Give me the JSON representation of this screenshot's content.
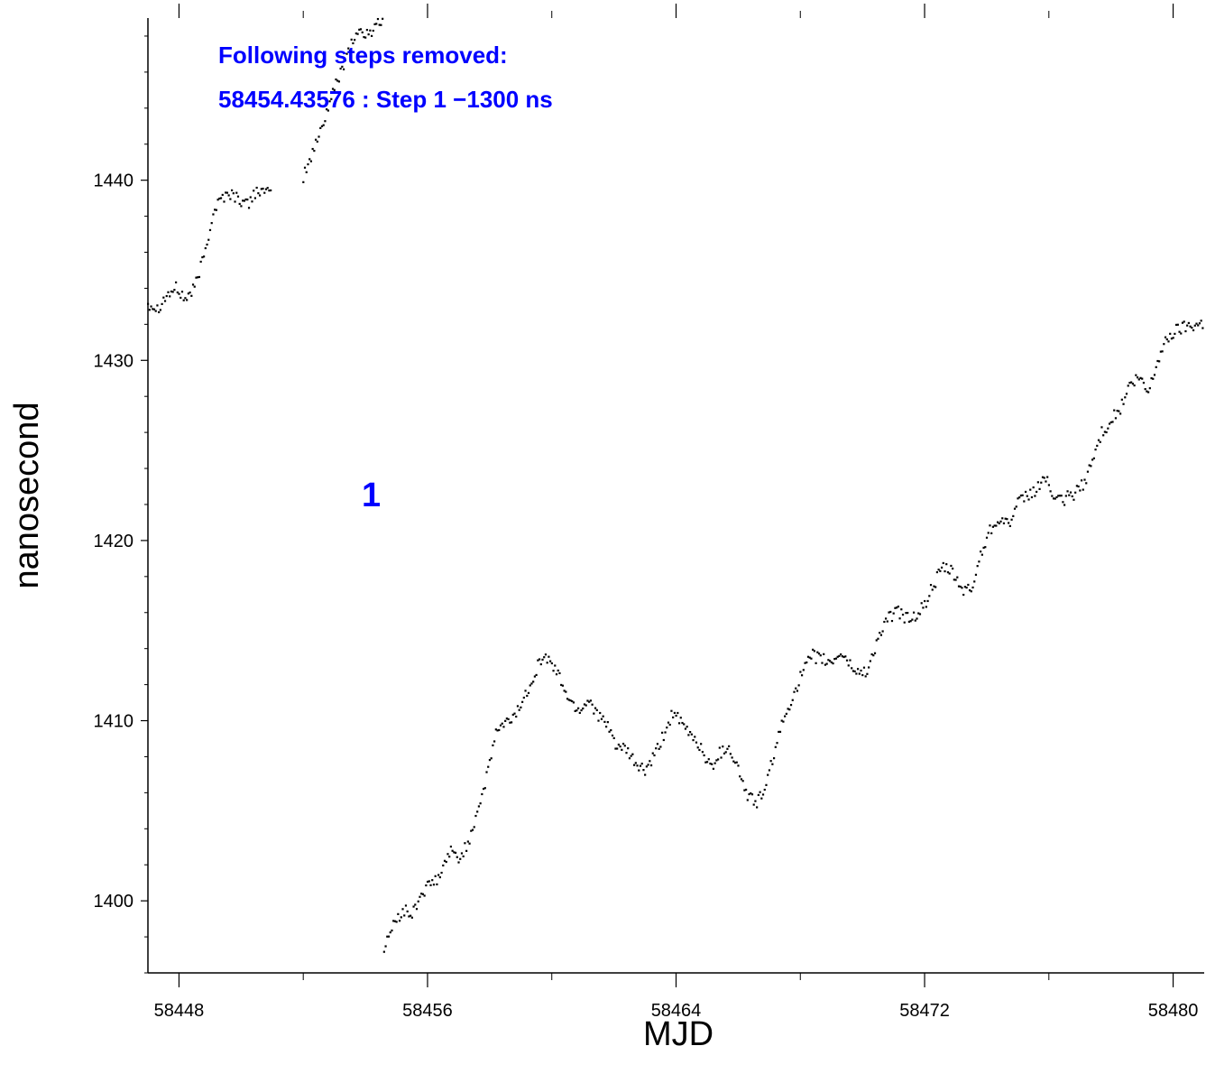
{
  "chart_data": {
    "type": "scatter",
    "title": "",
    "xlabel": "MJD",
    "ylabel": "nanosecond",
    "xlim": [
      58447,
      58481
    ],
    "ylim": [
      1396,
      1449
    ],
    "x_ticks": [
      58448,
      58456,
      58464,
      58472,
      58480
    ],
    "x_minor_ticks": [
      58452,
      58460,
      58468,
      58476
    ],
    "y_ticks": [
      1400,
      1410,
      1420,
      1430,
      1440
    ],
    "grid": false,
    "legend": "none",
    "marker_color": "#000000",
    "annotation_color": "#0000ff",
    "annotations": {
      "line1": "Following steps removed:",
      "line2": "58454.43576 : Step 1 −1300 ns",
      "step_marker": "1"
    },
    "series": [
      {
        "segments": [
          {
            "x": [
              58447.0,
              58447.3,
              58447.6,
              58447.9,
              58448.2,
              58448.5,
              58448.8,
              58449.1,
              58449.3,
              58449.6,
              58449.9,
              58450.2,
              58450.5,
              58450.8,
              58451.0
            ],
            "y": [
              1433.2,
              1432.9,
              1433.6,
              1434.0,
              1433.4,
              1434.0,
              1435.8,
              1438.2,
              1438.9,
              1439.3,
              1439.0,
              1438.6,
              1439.5,
              1439.2,
              1439.4
            ]
          },
          {
            "x": [
              58452.0,
              58452.3,
              58452.6,
              58452.9,
              58453.2,
              58453.5,
              58453.8,
              58454.1,
              58454.4,
              58454.6
            ],
            "y": [
              1440.2,
              1441.5,
              1443.0,
              1444.6,
              1446.0,
              1447.5,
              1448.3,
              1448.0,
              1448.9,
              1448.6
            ]
          },
          {
            "x": [
              58454.6,
              58454.9,
              58455.2,
              58455.5,
              58455.8,
              58456.1,
              58456.4,
              58456.7,
              58457.0,
              58457.3,
              58457.6,
              58457.9,
              58458.2,
              58458.5,
              58458.8,
              58459.1,
              58459.4,
              58459.7,
              58460.0,
              58460.3,
              58460.6,
              58460.9,
              58461.2,
              58461.5,
              58461.8,
              58462.1,
              58462.4,
              58462.7,
              58463.0,
              58463.3,
              58463.6,
              58463.9,
              58464.2,
              58464.5,
              58464.8,
              58465.1,
              58465.4,
              58465.7,
              58466.0,
              58466.3,
              58466.6,
              58466.9,
              58467.2,
              58467.5,
              58467.8,
              58468.1,
              58468.4,
              58468.7,
              58469.0,
              58469.3,
              58469.6,
              58469.9,
              58470.2,
              58470.5,
              58470.8,
              58471.1,
              58471.4,
              58471.7,
              58472.0,
              58472.3,
              58472.6,
              58472.9,
              58473.2,
              58473.5,
              58473.8,
              58474.1,
              58474.4,
              58474.7,
              58475.0,
              58475.3,
              58475.6,
              58475.9,
              58476.2,
              58476.5,
              58476.8,
              58477.1,
              58477.4,
              58477.7,
              58478.0,
              58478.3,
              58478.6,
              58478.9,
              58479.2,
              58479.5,
              58479.8,
              58480.1,
              58480.4,
              58480.7,
              58481.0
            ],
            "y": [
              1397.5,
              1398.6,
              1399.5,
              1399.2,
              1400.4,
              1400.9,
              1401.3,
              1402.8,
              1402.3,
              1403.2,
              1405.0,
              1406.8,
              1409.4,
              1409.8,
              1410.3,
              1411.2,
              1412.5,
              1413.6,
              1413.2,
              1412.2,
              1411.0,
              1410.6,
              1411.2,
              1410.3,
              1409.6,
              1408.6,
              1408.3,
              1407.6,
              1407.2,
              1408.0,
              1409.2,
              1410.5,
              1409.7,
              1409.2,
              1408.5,
              1407.4,
              1408.2,
              1408.6,
              1407.3,
              1405.8,
              1405.5,
              1406.3,
              1408.6,
              1410.2,
              1411.6,
              1412.8,
              1413.6,
              1413.4,
              1413.2,
              1413.8,
              1413.1,
              1412.6,
              1412.9,
              1414.6,
              1415.6,
              1416.1,
              1415.7,
              1415.8,
              1416.4,
              1417.6,
              1418.5,
              1418.2,
              1417.3,
              1417.2,
              1419.2,
              1420.6,
              1421.3,
              1420.9,
              1422.0,
              1422.5,
              1422.8,
              1423.6,
              1422.1,
              1422.3,
              1422.6,
              1423.1,
              1424.4,
              1426.0,
              1426.7,
              1427.3,
              1428.6,
              1429.0,
              1428.2,
              1430.0,
              1431.2,
              1431.7,
              1431.9,
              1432.0,
              1432.1
            ]
          }
        ]
      }
    ]
  }
}
